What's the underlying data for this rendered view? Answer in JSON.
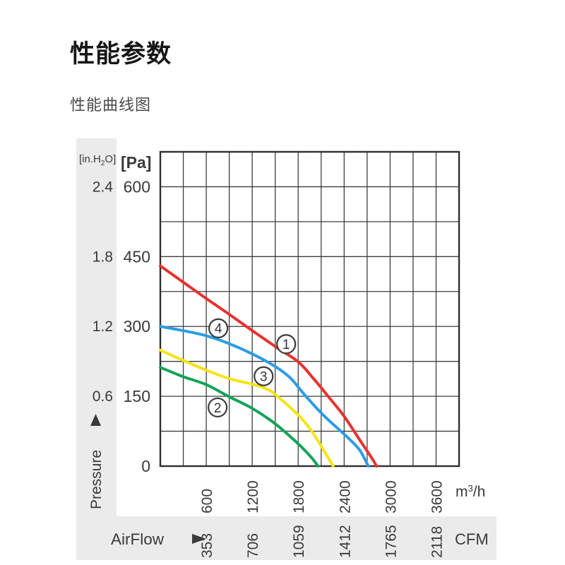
{
  "header": {
    "title": "性能参数",
    "subtitle": "性能曲线图"
  },
  "colors": {
    "band_gray": "#ebebeb",
    "grid_line": "#3e3e3e",
    "plot_border": "#2f2f2f",
    "axis_text": "#3a3a3a",
    "marker_stroke": "#3c3c3c",
    "curve_red": "#e8312f",
    "curve_blue": "#2b9de4",
    "curve_yellow": "#f5e414",
    "curve_green": "#12a456"
  },
  "chart_data": {
    "type": "line",
    "title": "性能曲线图",
    "grid": "on",
    "legend": "none",
    "x_axis": {
      "unit_primary": {
        "pre": "m",
        "sup": "3",
        "post": "/h"
      },
      "unit_secondary": "CFM",
      "axis_label": "AirFlow",
      "range_m3h": [
        0,
        3900
      ],
      "minor_step_m3h": 300,
      "ticks_m3h": [
        600,
        1200,
        1800,
        2400,
        3000,
        3600
      ],
      "ticks_cfm": [
        "353",
        "706",
        "1059",
        "1412",
        "1765",
        "2118"
      ]
    },
    "y_axis": {
      "unit_primary": "[Pa]",
      "unit_secondary": {
        "pre": "[in.H",
        "sub": "2",
        "post": "O]"
      },
      "axis_label": "Pressure",
      "range_pa": [
        0,
        675
      ],
      "minor_step_pa": 75,
      "ticks_pa": [
        600,
        450,
        300,
        150,
        0
      ],
      "ticks_inh2o": [
        {
          "label": "2.4",
          "at_pa": 600
        },
        {
          "label": "1.8",
          "at_pa": 450
        },
        {
          "label": "1.2",
          "at_pa": 300
        },
        {
          "label": "0.6",
          "at_pa": 150
        }
      ]
    },
    "series": [
      {
        "id": "2",
        "color_key": "curve_green",
        "points": [
          [
            0,
            212
          ],
          [
            300,
            192
          ],
          [
            600,
            175
          ],
          [
            900,
            149
          ],
          [
            1200,
            124
          ],
          [
            1500,
            91
          ],
          [
            1800,
            48
          ],
          [
            1965,
            20
          ],
          [
            2060,
            0
          ]
        ]
      },
      {
        "id": "3",
        "color_key": "curve_yellow",
        "points": [
          [
            0,
            249
          ],
          [
            300,
            227
          ],
          [
            600,
            206
          ],
          [
            900,
            188
          ],
          [
            1200,
            176
          ],
          [
            1400,
            165
          ],
          [
            1550,
            147
          ],
          [
            1800,
            110
          ],
          [
            1965,
            78
          ],
          [
            2130,
            35
          ],
          [
            2255,
            0
          ]
        ]
      },
      {
        "id": "4",
        "color_key": "curve_blue",
        "points": [
          [
            0,
            300
          ],
          [
            300,
            291
          ],
          [
            600,
            280
          ],
          [
            900,
            263
          ],
          [
            1200,
            241
          ],
          [
            1500,
            214
          ],
          [
            1700,
            189
          ],
          [
            1900,
            150
          ],
          [
            2150,
            106
          ],
          [
            2430,
            64
          ],
          [
            2600,
            35
          ],
          [
            2715,
            0
          ]
        ]
      },
      {
        "id": "1",
        "color_key": "curve_red",
        "points": [
          [
            0,
            430
          ],
          [
            300,
            395
          ],
          [
            600,
            360
          ],
          [
            900,
            326
          ],
          [
            1200,
            291
          ],
          [
            1500,
            257
          ],
          [
            1800,
            224
          ],
          [
            2000,
            188
          ],
          [
            2200,
            148
          ],
          [
            2400,
            107
          ],
          [
            2600,
            57
          ],
          [
            2750,
            20
          ],
          [
            2825,
            0
          ]
        ]
      }
    ],
    "markers": [
      {
        "label": "1",
        "flow": 1643,
        "pressure": 262
      },
      {
        "label": "2",
        "flow": 748,
        "pressure": 126
      },
      {
        "label": "3",
        "flow": 1348,
        "pressure": 193
      },
      {
        "label": "4",
        "flow": 757,
        "pressure": 296
      }
    ]
  }
}
